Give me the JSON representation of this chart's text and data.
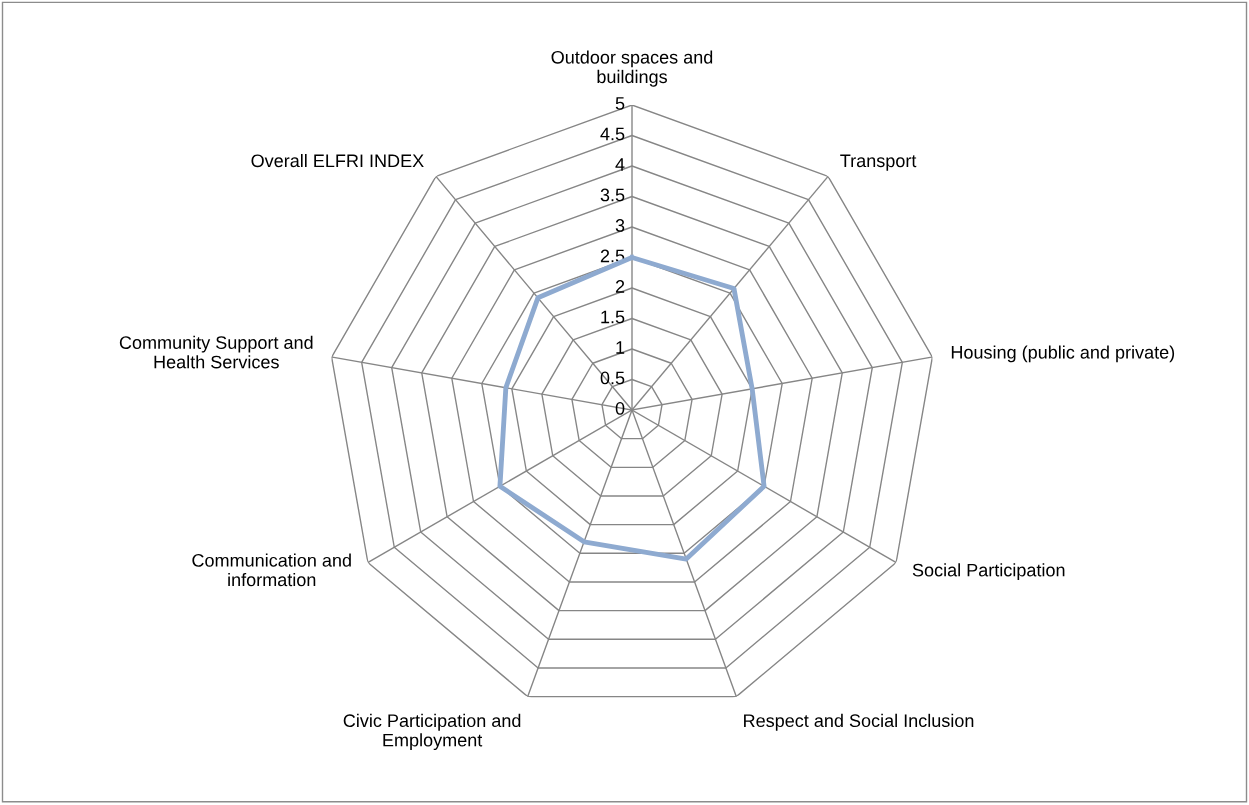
{
  "chart_data": {
    "type": "radar",
    "categories": [
      "Outdoor spaces and\nbuildings",
      "Transport",
      "Housing (public and private)",
      "Social Participation",
      "Respect and Social Inclusion",
      "Civic Participation and\nEmployment",
      "Communication and\ninformation",
      "Community Support and\nHealth Services",
      "Overall ELFRI INDEX"
    ],
    "series": [
      {
        "color": "#8eaad0",
        "values": [
          2.5,
          2.6,
          2.0,
          2.5,
          2.6,
          2.3,
          2.5,
          2.1,
          2.4
        ]
      }
    ],
    "ylim": [
      0,
      5
    ],
    "yticks": [
      0,
      0.5,
      1,
      1.5,
      2,
      2.5,
      3,
      3.5,
      4,
      4.5,
      5
    ],
    "grid": true,
    "marker": "none",
    "line_style": "solid"
  }
}
